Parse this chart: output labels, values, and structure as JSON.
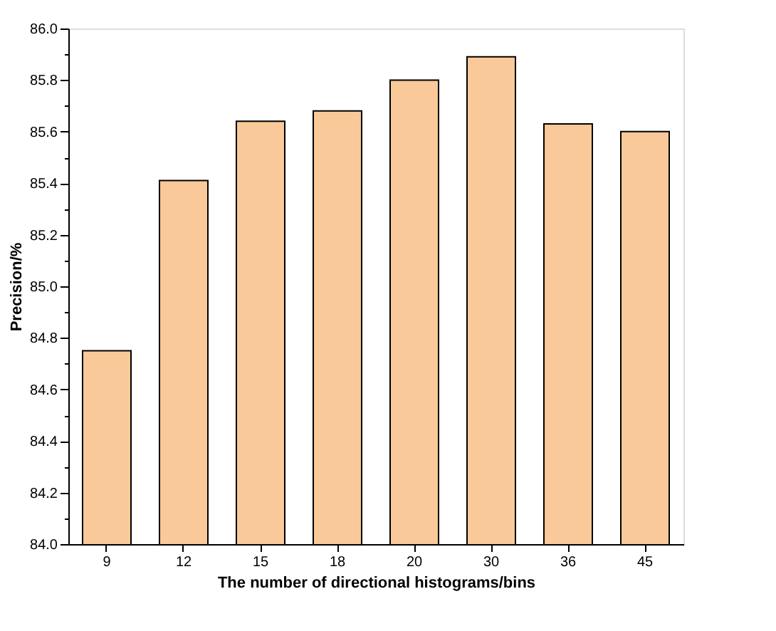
{
  "chart_data": {
    "type": "bar",
    "xlabel": "The number of directional histograms/bins",
    "ylabel": "Precision/%",
    "categories": [
      "9",
      "12",
      "15",
      "18",
      "20",
      "30",
      "36",
      "45"
    ],
    "values": [
      84.75,
      85.41,
      85.64,
      85.68,
      85.8,
      85.89,
      85.63,
      85.6
    ],
    "color": "#fac999",
    "ylim": [
      84.0,
      86.0
    ],
    "yticks": [
      {
        "value": 84.0,
        "label": "84.0"
      },
      {
        "value": 84.1,
        "label": null
      },
      {
        "value": 84.2,
        "label": "84.2"
      },
      {
        "value": 84.3,
        "label": null
      },
      {
        "value": 84.4,
        "label": "84.4"
      },
      {
        "value": 84.5,
        "label": null
      },
      {
        "value": 84.6,
        "label": "84.6"
      },
      {
        "value": 84.7,
        "label": null
      },
      {
        "value": 84.8,
        "label": "84.8"
      },
      {
        "value": 84.9,
        "label": null
      },
      {
        "value": 85.0,
        "label": "85.0"
      },
      {
        "value": 85.1,
        "label": null
      },
      {
        "value": 85.2,
        "label": "85.2"
      },
      {
        "value": 85.3,
        "label": null
      },
      {
        "value": 85.4,
        "label": "85.4"
      },
      {
        "value": 85.5,
        "label": null
      },
      {
        "value": 85.6,
        "label": "85.6"
      },
      {
        "value": 85.7,
        "label": null
      },
      {
        "value": 85.8,
        "label": "85.8"
      },
      {
        "value": 85.9,
        "label": null
      },
      {
        "value": 86.0,
        "label": "86.0"
      }
    ],
    "grid": false
  }
}
